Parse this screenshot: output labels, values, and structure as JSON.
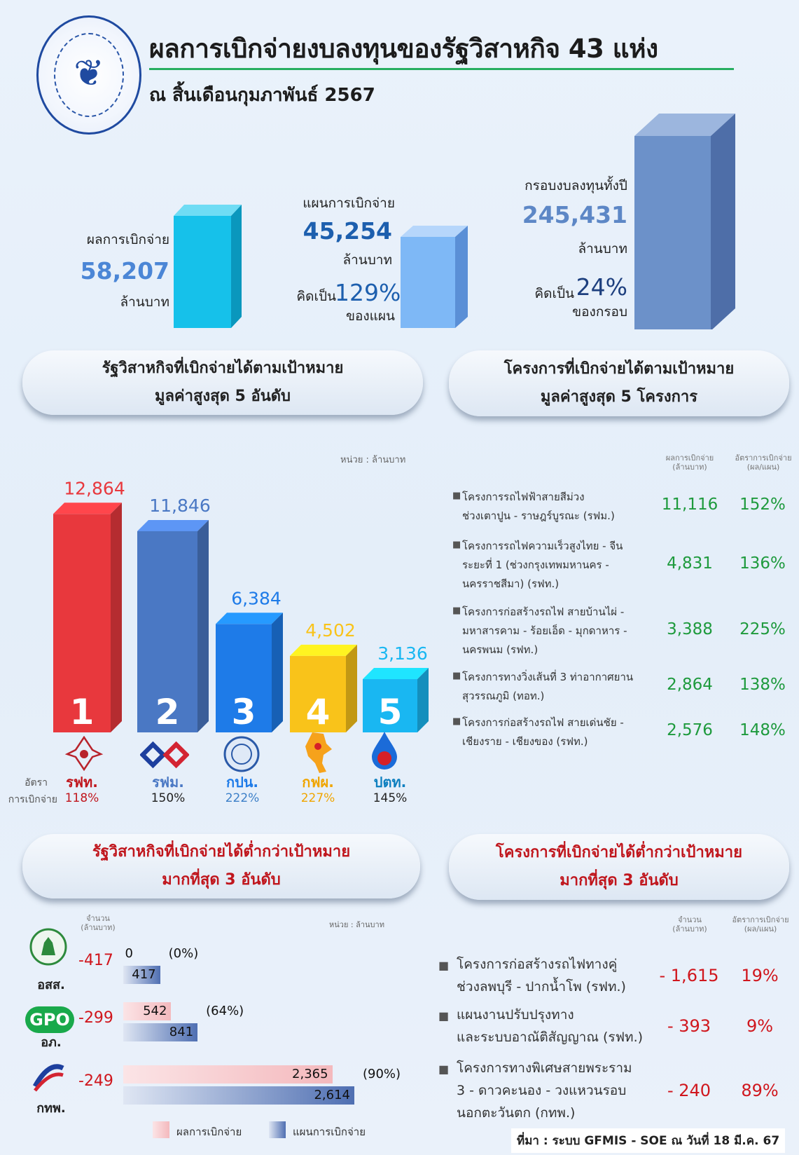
{
  "header": {
    "title": "ผลการเบิกจ่ายงบลงทุนของรัฐวิสาหกิจ 43 แห่ง",
    "subtitle": "ณ สิ้นเดือนกุมภาพันธ์ 2567"
  },
  "summary": {
    "actual": {
      "label": "ผลการเบิกจ่าย",
      "value": "58,207",
      "unit": "ล้านบาท"
    },
    "plan": {
      "label": "แผนการเบิกจ่าย",
      "value": "45,254",
      "unit": "ล้านบาท",
      "pct_prefix": "คิดเป็น",
      "pct": "129%",
      "pct_suffix": "ของแผน"
    },
    "budget": {
      "label": "กรอบงบลงทุนทั้งปี",
      "value": "245,431",
      "unit": "ล้านบาท",
      "pct_prefix": "คิดเป็น",
      "pct": "24%",
      "pct_suffix": "ของกรอบ"
    }
  },
  "top_ent": {
    "heading_1": "รัฐวิสาหกิจที่เบิกจ่ายได้ตามเป้าหมาย",
    "heading_2": "มูลค่าสูงสุด 5 อันดับ",
    "unit_note": "หน่วย : ล้านบาท",
    "rate_label_1": "อัตรา",
    "rate_label_2": "การเบิกจ่าย"
  },
  "top_proj": {
    "heading_1": "โครงการที่เบิกจ่ายได้ตามเป้าหมาย",
    "heading_2": "มูลค่าสูงสุด 5 โครงการ",
    "col_val_1": "ผลการเบิกจ่าย",
    "col_val_2": "(ล้านบาท)",
    "col_rate_1": "อัตราการเบิกจ่าย",
    "col_rate_2": "(ผล/แผน)",
    "items": [
      {
        "line1": "โครงการรถไฟฟ้าสายสีม่วง",
        "line2": "ช่วงเตาปูน - ราษฎร์บูรณะ (รฟม.)",
        "line3": "",
        "value": "11,116",
        "rate": "152%"
      },
      {
        "line1": "โครงการรถไฟความเร็วสูงไทย - จีน",
        "line2": "ระยะที่ 1 (ช่วงกรุงเทพมหานคร -",
        "line3": "นครราชสีมา) (รฟท.)",
        "value": "4,831",
        "rate": "136%"
      },
      {
        "line1": "โครงการก่อสร้างรถไฟ สายบ้านไผ่ -",
        "line2": "มหาสารคาม - ร้อยเอ็ด - มุกดาหาร -",
        "line3": "นครพนม (รฟท.)",
        "value": "3,388",
        "rate": "225%"
      },
      {
        "line1": "โครงการทางวิ่งเส้นที่ 3 ท่าอากาศยาน",
        "line2": "สุวรรณภูมิ (ทอท.)",
        "line3": "",
        "value": "2,864",
        "rate": "138%"
      },
      {
        "line1": "โครงการก่อสร้างรถไฟ สายเด่นชัย -",
        "line2": "เชียงราย - เชียงของ (รฟท.)",
        "line3": "",
        "value": "2,576",
        "rate": "148%"
      }
    ]
  },
  "low_ent": {
    "heading_1": "รัฐวิสาหกิจที่เบิกจ่ายได้ต่ำกว่าเป้าหมาย",
    "heading_2": "มากที่สุด 3 อันดับ",
    "col_1": "จำนวน",
    "col_2": "(ล้านบาท)",
    "unit_note": "หน่วย : ล้านบาท",
    "legend_actual": "ผลการเบิกจ่าย",
    "legend_plan": "แผนการเบิกจ่าย",
    "items": [
      {
        "abbr": "อสส.",
        "logo_text": "",
        "diff": "-417",
        "actual": 0,
        "actual_label": "0",
        "plan": 417,
        "plan_label": "417",
        "pct": "(0%)"
      },
      {
        "abbr": "อภ.",
        "logo_text": "GPO",
        "diff": "-299",
        "actual": 542,
        "actual_label": "542",
        "plan": 841,
        "plan_label": "841",
        "pct": "(64%)"
      },
      {
        "abbr": "กทพ.",
        "logo_text": "EXAT",
        "diff": "-249",
        "actual": 2365,
        "actual_label": "2,365",
        "plan": 2614,
        "plan_label": "2,614",
        "pct": "(90%)"
      }
    ]
  },
  "low_proj": {
    "heading_1": "โครงการที่เบิกจ่ายได้ต่ำกว่าเป้าหมาย",
    "heading_2": "มากที่สุด 3 อันดับ",
    "col_val_1": "จำนวน",
    "col_val_2": "(ล้านบาท)",
    "col_rate_1": "อัตราการเบิกจ่าย",
    "col_rate_2": "(ผล/แผน)",
    "items": [
      {
        "line1": "โครงการก่อสร้างรถไฟทางคู่",
        "line2": "ช่วงลพบุรี - ปากน้ำโพ (รฟท.)",
        "line3": "",
        "value": "- 1,615",
        "rate": "19%"
      },
      {
        "line1": "แผนงานปรับปรุงทาง",
        "line2": "และระบบอาณัติสัญญาณ (รฟท.)",
        "line3": "",
        "value": "- 393",
        "rate": "9%"
      },
      {
        "line1": "โครงการทางพิเศษสายพระราม",
        "line2": "3 - ดาวคะนอง - วงแหวนรอบ",
        "line3": "นอกตะวันตก (กทพ.)",
        "value": "- 240",
        "rate": "89%"
      }
    ]
  },
  "source": "ที่มา : ระบบ GFMIS - SOE ณ วันที่ 18 มี.ค. 67",
  "chart_data": [
    {
      "type": "bar",
      "title": "",
      "categories": [
        "รฟท.",
        "รฟม.",
        "กปน.",
        "กฟผ.",
        "ปตท."
      ],
      "values": [
        12864,
        11846,
        6384,
        4502,
        3136
      ],
      "value_labels": [
        "12,864",
        "11,846",
        "6,384",
        "4,502",
        "3,136"
      ],
      "rates": [
        "118%",
        "150%",
        "222%",
        "227%",
        "145%"
      ],
      "ranks": [
        "1",
        "2",
        "3",
        "4",
        "5"
      ],
      "colors": [
        "#e8383d",
        "#4a78c4",
        "#1e7be8",
        "#f9c31a",
        "#19b7f2"
      ],
      "ylim": [
        0,
        13000
      ],
      "xlabel": "",
      "ylabel": ""
    },
    {
      "type": "bar",
      "title": "",
      "categories": [
        "ผลการเบิกจ่าย",
        "แผนการเบิกจ่าย",
        "กรอบงบลงทุนทั้งปี"
      ],
      "values": [
        58207,
        45254,
        245431
      ],
      "colors": [
        "#15c0ea",
        "#7db7f5",
        "#6a8fc8"
      ]
    },
    {
      "type": "bar",
      "title": "",
      "categories": [
        "อสส.",
        "อภ.",
        "กทพ."
      ],
      "series": [
        {
          "name": "ผลการเบิกจ่าย",
          "values": [
            0,
            542,
            2365
          ]
        },
        {
          "name": "แผนการเบิกจ่าย",
          "values": [
            417,
            841,
            2614
          ]
        }
      ],
      "ylim": [
        0,
        2614
      ]
    }
  ]
}
